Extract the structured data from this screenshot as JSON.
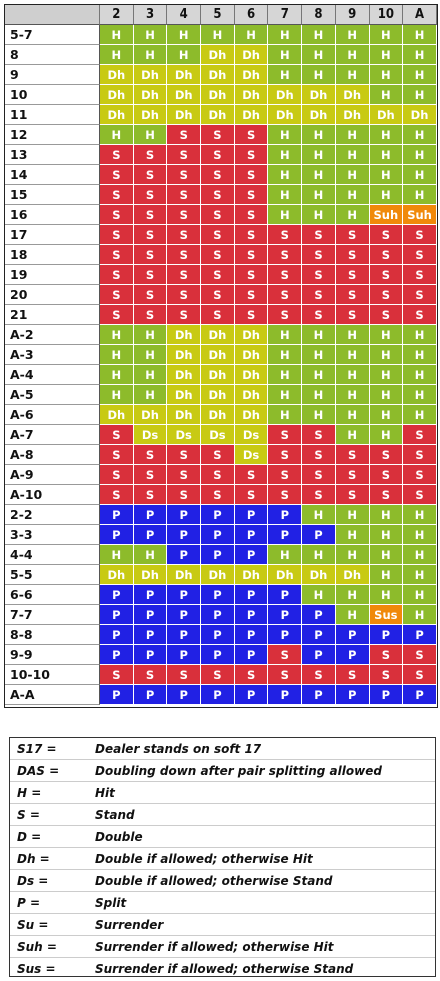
{
  "chart": {
    "dealer_cards": [
      "2",
      "3",
      "4",
      "5",
      "6",
      "7",
      "8",
      "9",
      "10",
      "A"
    ],
    "rows": [
      {
        "label": "5-7",
        "actions": [
          "H",
          "H",
          "H",
          "H",
          "H",
          "H",
          "H",
          "H",
          "H",
          "H"
        ]
      },
      {
        "label": "8",
        "actions": [
          "H",
          "H",
          "H",
          "Dh",
          "Dh",
          "H",
          "H",
          "H",
          "H",
          "H"
        ]
      },
      {
        "label": "9",
        "actions": [
          "Dh",
          "Dh",
          "Dh",
          "Dh",
          "Dh",
          "H",
          "H",
          "H",
          "H",
          "H"
        ]
      },
      {
        "label": "10",
        "actions": [
          "Dh",
          "Dh",
          "Dh",
          "Dh",
          "Dh",
          "Dh",
          "Dh",
          "Dh",
          "H",
          "H"
        ]
      },
      {
        "label": "11",
        "actions": [
          "Dh",
          "Dh",
          "Dh",
          "Dh",
          "Dh",
          "Dh",
          "Dh",
          "Dh",
          "Dh",
          "Dh"
        ]
      },
      {
        "label": "12",
        "actions": [
          "H",
          "H",
          "S",
          "S",
          "S",
          "H",
          "H",
          "H",
          "H",
          "H"
        ]
      },
      {
        "label": "13",
        "actions": [
          "S",
          "S",
          "S",
          "S",
          "S",
          "H",
          "H",
          "H",
          "H",
          "H"
        ]
      },
      {
        "label": "14",
        "actions": [
          "S",
          "S",
          "S",
          "S",
          "S",
          "H",
          "H",
          "H",
          "H",
          "H"
        ]
      },
      {
        "label": "15",
        "actions": [
          "S",
          "S",
          "S",
          "S",
          "S",
          "H",
          "H",
          "H",
          "H",
          "H"
        ]
      },
      {
        "label": "16",
        "actions": [
          "S",
          "S",
          "S",
          "S",
          "S",
          "H",
          "H",
          "H",
          "Suh",
          "Suh"
        ]
      },
      {
        "label": "17",
        "actions": [
          "S",
          "S",
          "S",
          "S",
          "S",
          "S",
          "S",
          "S",
          "S",
          "S"
        ]
      },
      {
        "label": "18",
        "actions": [
          "S",
          "S",
          "S",
          "S",
          "S",
          "S",
          "S",
          "S",
          "S",
          "S"
        ]
      },
      {
        "label": "19",
        "actions": [
          "S",
          "S",
          "S",
          "S",
          "S",
          "S",
          "S",
          "S",
          "S",
          "S"
        ]
      },
      {
        "label": "20",
        "actions": [
          "S",
          "S",
          "S",
          "S",
          "S",
          "S",
          "S",
          "S",
          "S",
          "S"
        ]
      },
      {
        "label": "21",
        "actions": [
          "S",
          "S",
          "S",
          "S",
          "S",
          "S",
          "S",
          "S",
          "S",
          "S"
        ]
      },
      {
        "label": "A-2",
        "actions": [
          "H",
          "H",
          "Dh",
          "Dh",
          "Dh",
          "H",
          "H",
          "H",
          "H",
          "H"
        ]
      },
      {
        "label": "A-3",
        "actions": [
          "H",
          "H",
          "Dh",
          "Dh",
          "Dh",
          "H",
          "H",
          "H",
          "H",
          "H"
        ]
      },
      {
        "label": "A-4",
        "actions": [
          "H",
          "H",
          "Dh",
          "Dh",
          "Dh",
          "H",
          "H",
          "H",
          "H",
          "H"
        ]
      },
      {
        "label": "A-5",
        "actions": [
          "H",
          "H",
          "Dh",
          "Dh",
          "Dh",
          "H",
          "H",
          "H",
          "H",
          "H"
        ]
      },
      {
        "label": "A-6",
        "actions": [
          "Dh",
          "Dh",
          "Dh",
          "Dh",
          "Dh",
          "H",
          "H",
          "H",
          "H",
          "H"
        ]
      },
      {
        "label": "A-7",
        "actions": [
          "S",
          "Ds",
          "Ds",
          "Ds",
          "Ds",
          "S",
          "S",
          "H",
          "H",
          "S"
        ]
      },
      {
        "label": "A-8",
        "actions": [
          "S",
          "S",
          "S",
          "S",
          "Ds",
          "S",
          "S",
          "S",
          "S",
          "S"
        ]
      },
      {
        "label": "A-9",
        "actions": [
          "S",
          "S",
          "S",
          "S",
          "S",
          "S",
          "S",
          "S",
          "S",
          "S"
        ]
      },
      {
        "label": "A-10",
        "actions": [
          "S",
          "S",
          "S",
          "S",
          "S",
          "S",
          "S",
          "S",
          "S",
          "S"
        ]
      },
      {
        "label": "2-2",
        "actions": [
          "P",
          "P",
          "P",
          "P",
          "P",
          "P",
          "H",
          "H",
          "H",
          "H"
        ]
      },
      {
        "label": "3-3",
        "actions": [
          "P",
          "P",
          "P",
          "P",
          "P",
          "P",
          "P",
          "H",
          "H",
          "H"
        ]
      },
      {
        "label": "4-4",
        "actions": [
          "H",
          "H",
          "P",
          "P",
          "P",
          "H",
          "H",
          "H",
          "H",
          "H"
        ]
      },
      {
        "label": "5-5",
        "actions": [
          "Dh",
          "Dh",
          "Dh",
          "Dh",
          "Dh",
          "Dh",
          "Dh",
          "Dh",
          "H",
          "H"
        ]
      },
      {
        "label": "6-6",
        "actions": [
          "P",
          "P",
          "P",
          "P",
          "P",
          "P",
          "H",
          "H",
          "H",
          "H"
        ]
      },
      {
        "label": "7-7",
        "actions": [
          "P",
          "P",
          "P",
          "P",
          "P",
          "P",
          "P",
          "H",
          "Sus",
          "H"
        ]
      },
      {
        "label": "8-8",
        "actions": [
          "P",
          "P",
          "P",
          "P",
          "P",
          "P",
          "P",
          "P",
          "P",
          "P"
        ]
      },
      {
        "label": "9-9",
        "actions": [
          "P",
          "P",
          "P",
          "P",
          "P",
          "S",
          "P",
          "P",
          "S",
          "S"
        ]
      },
      {
        "label": "10-10",
        "actions": [
          "S",
          "S",
          "S",
          "S",
          "S",
          "S",
          "S",
          "S",
          "S",
          "S"
        ]
      },
      {
        "label": "A-A",
        "actions": [
          "P",
          "P",
          "P",
          "P",
          "P",
          "P",
          "P",
          "P",
          "P",
          "P"
        ]
      }
    ]
  },
  "colors": {
    "H": "#8dbb2b",
    "S": "#d9303b",
    "Dh": "#c8ca13",
    "Ds": "#c8ca13",
    "P": "#2121e4",
    "Suh": "#f0890a",
    "Sus": "#f0890a"
  },
  "legend": [
    {
      "key": "S17 =",
      "text": "Dealer stands on soft 17"
    },
    {
      "key": "DAS =",
      "text": "Doubling down after pair splitting allowed"
    },
    {
      "key": "H =",
      "text": "Hit"
    },
    {
      "key": "S =",
      "text": "Stand"
    },
    {
      "key": "D =",
      "text": "Double"
    },
    {
      "key": "Dh =",
      "text": "Double if allowed; otherwise Hit"
    },
    {
      "key": "Ds =",
      "text": "Double if allowed; otherwise Stand"
    },
    {
      "key": "P =",
      "text": "Split"
    },
    {
      "key": "Su =",
      "text": "Surrender"
    },
    {
      "key": "Suh =",
      "text": "Surrender if allowed; otherwise Hit"
    },
    {
      "key": "Sus =",
      "text": "Surrender if allowed; otherwise Stand"
    }
  ]
}
